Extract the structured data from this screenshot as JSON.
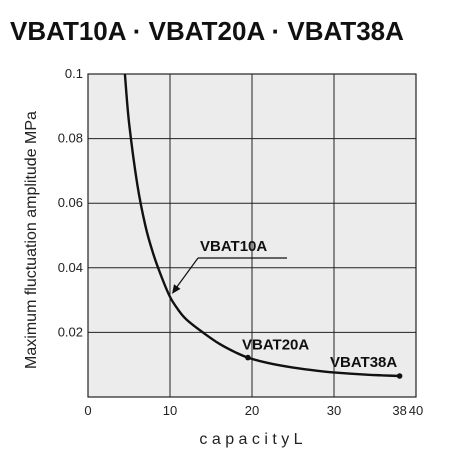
{
  "chart_data": {
    "type": "line",
    "title": "VBAT10A · VBAT20A · VBAT38A",
    "xlabel": "c a p a c i t y L",
    "ylabel": "Maximum fluctuation amplitude MPa",
    "xlim": [
      0,
      40
    ],
    "ylim": [
      0,
      0.1
    ],
    "x_ticks": [
      0,
      10,
      20,
      30,
      38,
      40
    ],
    "x_tick_labels": [
      "0",
      "10",
      "20",
      "30",
      "38",
      "40"
    ],
    "y_ticks": [
      0.02,
      0.04,
      0.06,
      0.08,
      0.1
    ],
    "y_tick_labels": [
      "0.02",
      "0.04",
      "0.06",
      "0.08",
      "0.1"
    ],
    "grid": true,
    "series": [
      {
        "x": [
          4.5,
          5.0,
          6.0,
          7.0,
          8.0,
          9.0,
          10.0,
          11.0,
          12.0,
          14.0,
          16.0,
          18.0,
          19.5,
          22.0,
          25.0,
          28.0,
          31.0,
          34.0,
          36.0,
          38.0
        ],
        "values": [
          0.1,
          0.085,
          0.066,
          0.053,
          0.044,
          0.037,
          0.031,
          0.027,
          0.024,
          0.02,
          0.0165,
          0.0138,
          0.0122,
          0.0105,
          0.0091,
          0.0081,
          0.0074,
          0.0069,
          0.0067,
          0.0065
        ],
        "color": "#111111"
      }
    ],
    "annotations": [
      {
        "label": "VBAT10A",
        "x": 10.0,
        "y": 0.031
      },
      {
        "label": "VBAT20A",
        "x": 19.5,
        "y": 0.0122
      },
      {
        "label": "VBAT38A",
        "x": 38.0,
        "y": 0.0065
      }
    ],
    "colors": {
      "plot_background": "#ececec",
      "grid": "#222222",
      "line": "#111111"
    }
  }
}
